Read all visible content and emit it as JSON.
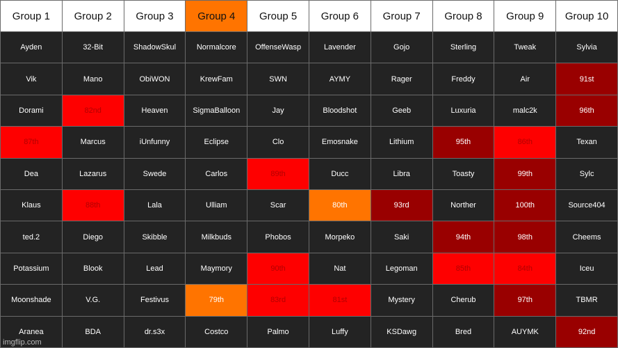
{
  "headers": [
    "Group 1",
    "Group 2",
    "Group 3",
    "Group 4",
    "Group 5",
    "Group 6",
    "Group 7",
    "Group 8",
    "Group 9",
    "Group 10"
  ],
  "highlighted_header_index": 3,
  "colors": {
    "header_bg": "#ffffff",
    "header_highlight": "#ff7400",
    "cell_bg": "#232323",
    "red": "#fe0000",
    "dark_red": "#990000",
    "orange": "#ff7400"
  },
  "rows": [
    [
      {
        "t": "Ayden"
      },
      {
        "t": "32-Bit"
      },
      {
        "t": "ShadowSkul"
      },
      {
        "t": "Normalcore"
      },
      {
        "t": "OffenseWasp"
      },
      {
        "t": "Lavender"
      },
      {
        "t": "Gojo"
      },
      {
        "t": "Sterling"
      },
      {
        "t": "Tweak"
      },
      {
        "t": "Sylvia"
      }
    ],
    [
      {
        "t": "Vik"
      },
      {
        "t": "Mano"
      },
      {
        "t": "ObiWON"
      },
      {
        "t": "KrewFam"
      },
      {
        "t": "SWN"
      },
      {
        "t": "AYMY"
      },
      {
        "t": "Rager"
      },
      {
        "t": "Freddy"
      },
      {
        "t": "Air"
      },
      {
        "t": "91st",
        "c": "dark"
      }
    ],
    [
      {
        "t": "Dorami"
      },
      {
        "t": "82nd",
        "c": "red"
      },
      {
        "t": "Heaven"
      },
      {
        "t": "SigmaBalloon"
      },
      {
        "t": "Jay"
      },
      {
        "t": "Bloodshot"
      },
      {
        "t": "Geeb"
      },
      {
        "t": "Luxuria"
      },
      {
        "t": "malc2k"
      },
      {
        "t": "96th",
        "c": "dark"
      }
    ],
    [
      {
        "t": "87th",
        "c": "red"
      },
      {
        "t": "Marcus"
      },
      {
        "t": "iUnfunny"
      },
      {
        "t": "Eclipse"
      },
      {
        "t": "Clo"
      },
      {
        "t": "Emosnake"
      },
      {
        "t": "Lithium"
      },
      {
        "t": "95th",
        "c": "dark"
      },
      {
        "t": "86th",
        "c": "red"
      },
      {
        "t": "Texan"
      }
    ],
    [
      {
        "t": "Dea"
      },
      {
        "t": "Lazarus"
      },
      {
        "t": "Swede"
      },
      {
        "t": "Carlos"
      },
      {
        "t": "89th",
        "c": "red"
      },
      {
        "t": "Ducc"
      },
      {
        "t": "Libra"
      },
      {
        "t": "Toasty"
      },
      {
        "t": "99th",
        "c": "dark"
      },
      {
        "t": "Sylc"
      }
    ],
    [
      {
        "t": "Klaus"
      },
      {
        "t": "88th",
        "c": "red"
      },
      {
        "t": "Lala"
      },
      {
        "t": "Ulliam"
      },
      {
        "t": "Scar"
      },
      {
        "t": "80th",
        "c": "orange"
      },
      {
        "t": "93rd",
        "c": "dark"
      },
      {
        "t": "Norther"
      },
      {
        "t": "100th",
        "c": "dark"
      },
      {
        "t": "Source404"
      }
    ],
    [
      {
        "t": "ted.2"
      },
      {
        "t": "Diego"
      },
      {
        "t": "Skibble"
      },
      {
        "t": "Milkbuds"
      },
      {
        "t": "Phobos"
      },
      {
        "t": "Morpeko"
      },
      {
        "t": "Saki"
      },
      {
        "t": "94th",
        "c": "dark"
      },
      {
        "t": "98th",
        "c": "dark"
      },
      {
        "t": "Cheems"
      }
    ],
    [
      {
        "t": "Potassium"
      },
      {
        "t": "Blook"
      },
      {
        "t": "Lead"
      },
      {
        "t": "Maymory"
      },
      {
        "t": "90th",
        "c": "red"
      },
      {
        "t": "Nat"
      },
      {
        "t": "Legoman"
      },
      {
        "t": "85th",
        "c": "red"
      },
      {
        "t": "84th",
        "c": "red"
      },
      {
        "t": "Iceu"
      }
    ],
    [
      {
        "t": "Moonshade"
      },
      {
        "t": "V.G."
      },
      {
        "t": "Festivus"
      },
      {
        "t": "79th",
        "c": "orange"
      },
      {
        "t": "83rd",
        "c": "red"
      },
      {
        "t": "81st",
        "c": "red"
      },
      {
        "t": "Mystery"
      },
      {
        "t": "Cherub"
      },
      {
        "t": "97th",
        "c": "dark"
      },
      {
        "t": "TBMR"
      }
    ],
    [
      {
        "t": "Aranea"
      },
      {
        "t": "BDA"
      },
      {
        "t": "dr.s3x"
      },
      {
        "t": "Costco"
      },
      {
        "t": "Palmo"
      },
      {
        "t": "Luffy"
      },
      {
        "t": "KSDawg"
      },
      {
        "t": "Bred"
      },
      {
        "t": "AUYMK"
      },
      {
        "t": "92nd",
        "c": "dark"
      }
    ]
  ],
  "watermark": "imgflip.com"
}
